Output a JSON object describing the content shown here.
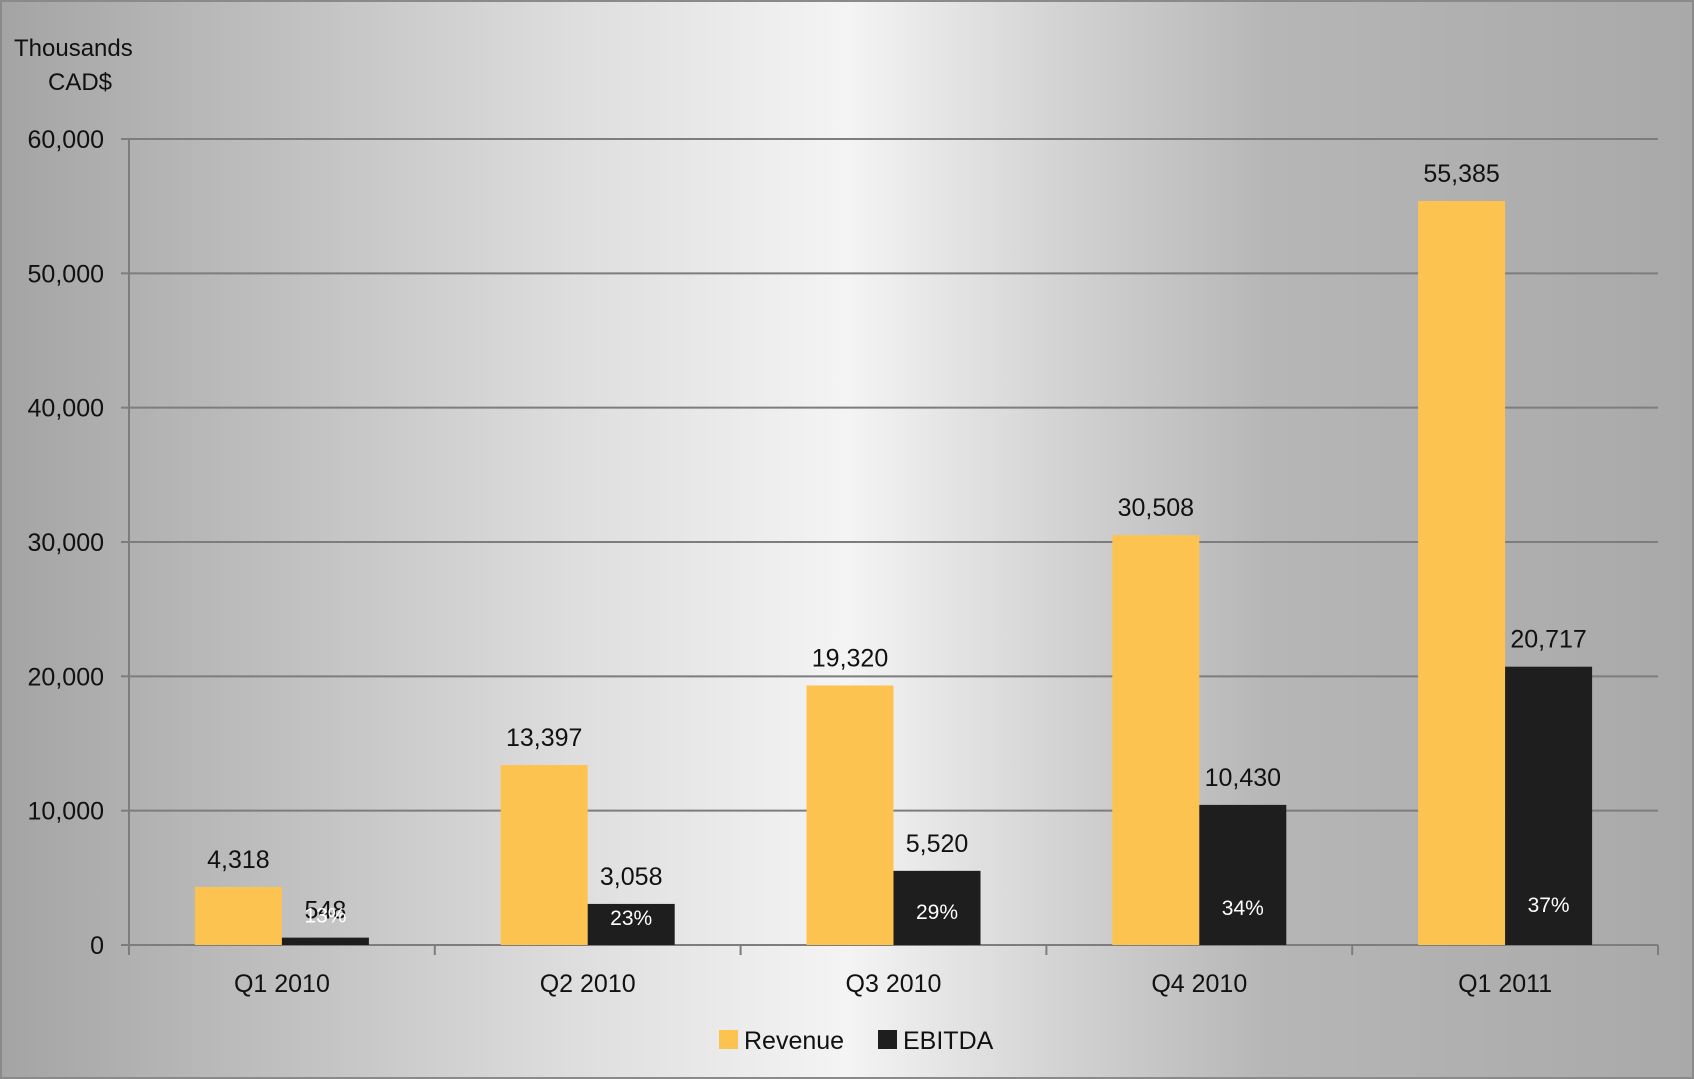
{
  "chart_data": {
    "type": "bar",
    "unit_label": [
      "Thousands",
      "CAD$"
    ],
    "categories": [
      "Q1 2010",
      "Q2 2010",
      "Q3 2010",
      "Q4 2010",
      "Q1 2011"
    ],
    "series": [
      {
        "name": "Revenue",
        "color": "#fdc350",
        "values": [
          4318,
          13397,
          19320,
          30508,
          55385
        ],
        "labels": [
          "4,318",
          "13,397",
          "19,320",
          "30,508",
          "55,385"
        ]
      },
      {
        "name": "EBITDA",
        "color": "#1e1e1e",
        "values": [
          548,
          3058,
          5520,
          10430,
          20717
        ],
        "labels": [
          "548",
          "3,058",
          "5,520",
          "10,430",
          "20,717"
        ],
        "margin_labels": [
          "13%",
          "23%",
          "29%",
          "34%",
          "37%"
        ]
      }
    ],
    "ylim": [
      0,
      60000
    ],
    "y_ticks": [
      0,
      10000,
      20000,
      30000,
      40000,
      50000,
      60000
    ],
    "y_tick_labels": [
      "0",
      "10,000",
      "20,000",
      "30,000",
      "40,000",
      "50,000",
      "60,000"
    ],
    "grid": true,
    "legend_position": "bottom"
  }
}
